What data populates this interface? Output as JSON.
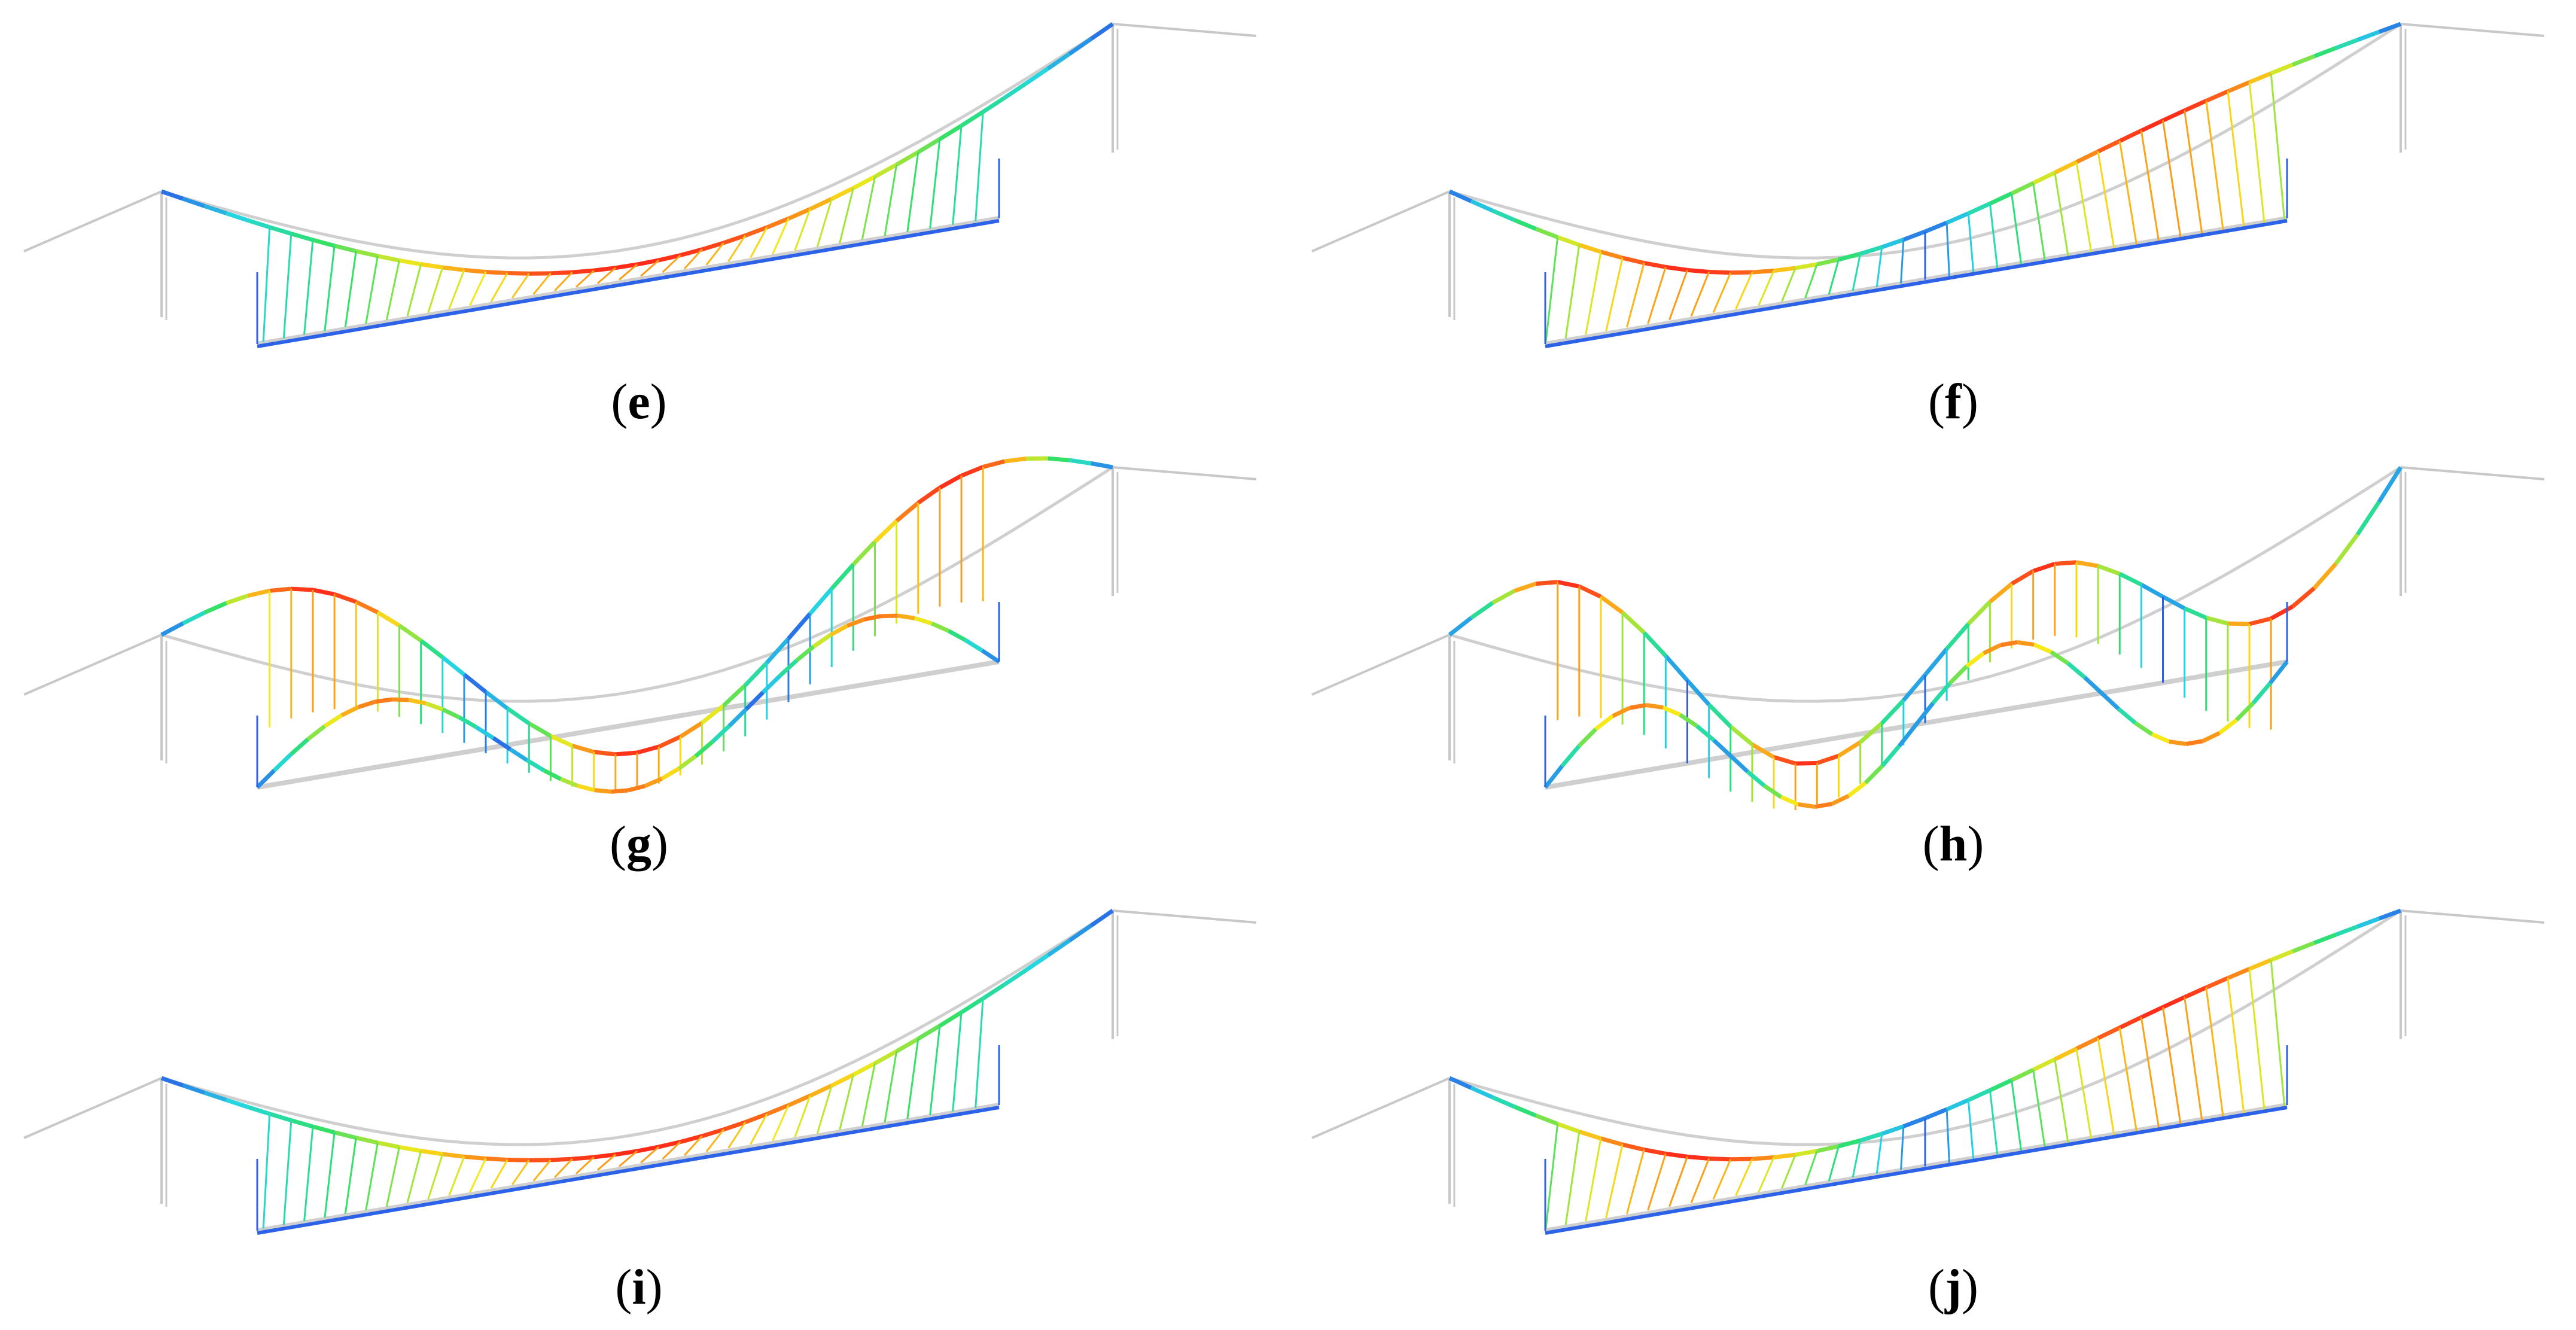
{
  "panels": [
    {
      "id": "e",
      "label": "e",
      "mode": "symmetric-sway",
      "waves": 1,
      "colors": {
        "max": "#ff2a1a",
        "mid": "#f7e81a",
        "low": "#2ee06a",
        "min": "#2b62e8",
        "neutral": "#cfcfcf"
      }
    },
    {
      "id": "f",
      "label": "f",
      "mode": "antisymmetric-sway",
      "waves": 2,
      "colors": {
        "max": "#ff2a1a",
        "mid": "#f7e81a",
        "low": "#2ee06a",
        "min": "#2b62e8",
        "neutral": "#cfcfcf"
      }
    },
    {
      "id": "g",
      "label": "g",
      "mode": "vertical-bending",
      "waves": 3,
      "colors": {
        "max": "#ff2a1a",
        "mid": "#f7e81a",
        "low": "#2ee06a",
        "min": "#2b62e8",
        "neutral": "#cfcfcf"
      }
    },
    {
      "id": "h",
      "label": "h",
      "mode": "torsion",
      "waves": 4,
      "colors": {
        "max": "#ff2a1a",
        "mid": "#f7e81a",
        "low": "#2ee06a",
        "min": "#2b62e8",
        "neutral": "#cfcfcf"
      }
    },
    {
      "id": "i",
      "label": "i",
      "mode": "lateral-sway",
      "waves": 1,
      "colors": {
        "max": "#ff2a1a",
        "mid": "#f7e81a",
        "low": "#2ee06a",
        "min": "#2b62e8",
        "neutral": "#cfcfcf"
      }
    },
    {
      "id": "j",
      "label": "j",
      "mode": "lateral-antisymmetric",
      "waves": 2,
      "colors": {
        "max": "#ff2a1a",
        "mid": "#f7e81a",
        "low": "#2ee06a",
        "min": "#2b62e8",
        "neutral": "#cfcfcf"
      }
    }
  ]
}
